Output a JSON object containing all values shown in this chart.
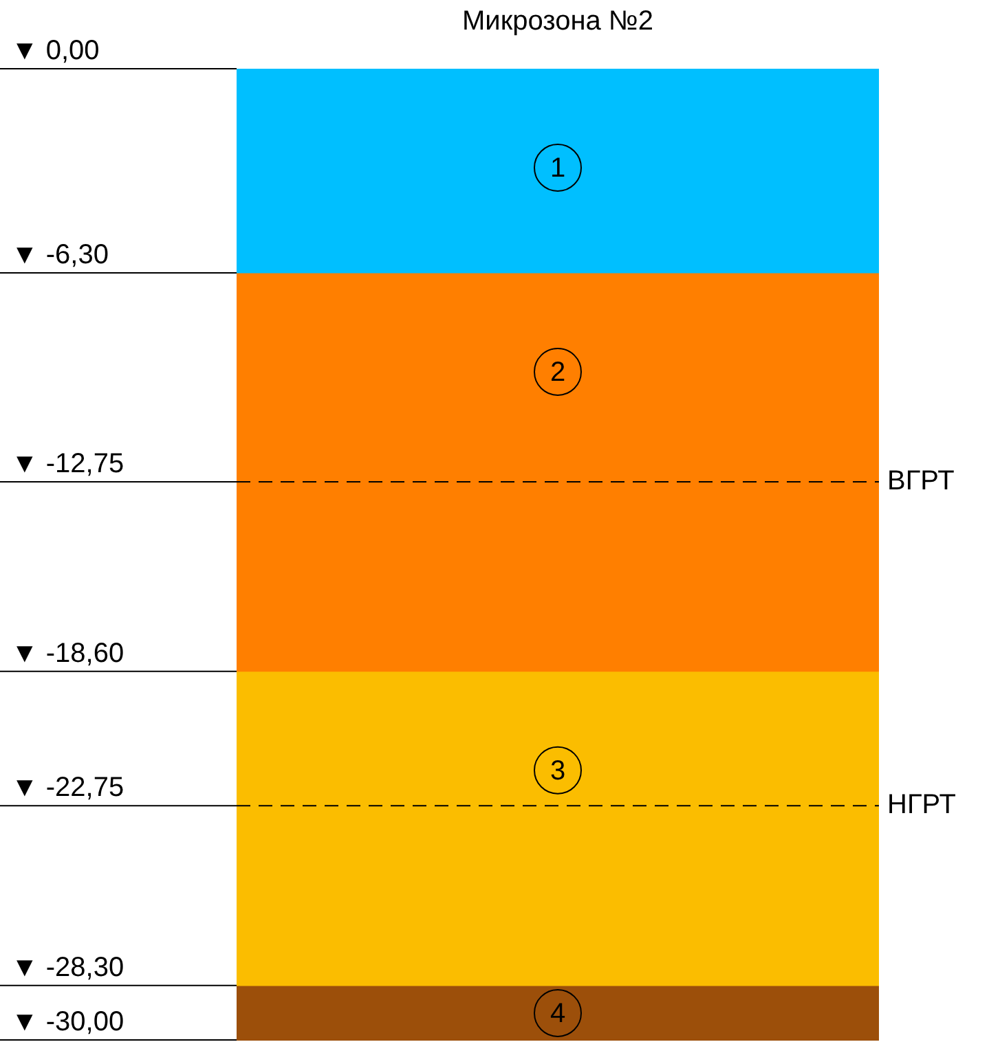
{
  "chart_data": {
    "type": "bar",
    "title": "Микрозона №2",
    "categories": [
      null
    ],
    "stacked": true,
    "series": [
      {
        "name": "1",
        "color": "#00bfff",
        "values": [
          -6.3
        ]
      },
      {
        "name": "2",
        "color": "#ff7f00",
        "values": [
          -12.3
        ]
      },
      {
        "name": "3",
        "color": "#fbbd00",
        "values": [
          -9.7
        ]
      },
      {
        "name": "4",
        "color": "#9c4f0a",
        "values": [
          -1.7
        ]
      }
    ],
    "ylim": [
      -30,
      0
    ],
    "yticks": [
      {
        "value": 0,
        "label": "▼ 0,00"
      },
      {
        "value": -6.3,
        "label": "▼ -6,30"
      },
      {
        "value": -12.75,
        "label": "▼ -12,75"
      },
      {
        "value": -18.6,
        "label": "▼ -18,60"
      },
      {
        "value": -22.75,
        "label": "▼ -22,75"
      },
      {
        "value": -28.3,
        "label": "▼ -28,30"
      },
      {
        "value": -30,
        "label": "▼ -30,00"
      }
    ],
    "ref_lines": [
      {
        "axis": "y",
        "value": -12.75,
        "label": "ВГРТ",
        "line_style": "dashed"
      },
      {
        "axis": "y",
        "value": -22.75,
        "label": "НГРТ",
        "line_style": "dashed"
      }
    ],
    "grid": false,
    "legend": false
  }
}
